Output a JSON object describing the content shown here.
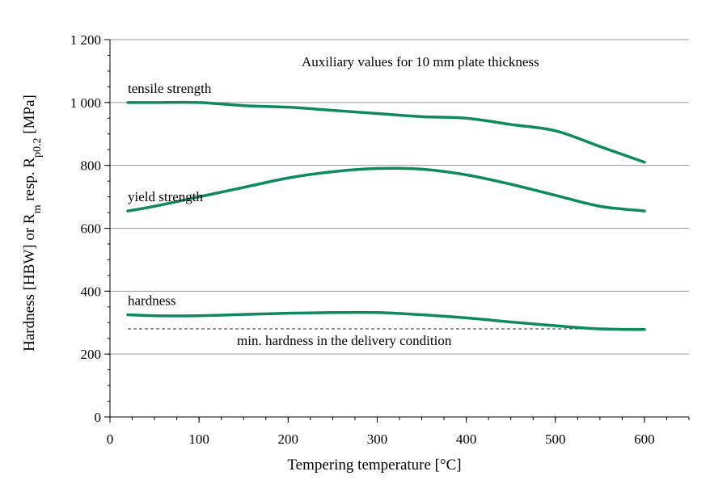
{
  "chart_data": {
    "type": "line",
    "title": "Auxiliary values for 10 mm plate thickness",
    "xlabel": "Tempering temperature [°C]",
    "ylabel_parts": [
      "Hardness [HBW] or R",
      "m",
      " resp. R",
      "p0.2",
      " [MPa]"
    ],
    "xlim": [
      0,
      650
    ],
    "ylim": [
      0,
      1200
    ],
    "x_ticks": [
      "0",
      "100",
      "200",
      "300",
      "400",
      "500",
      "600"
    ],
    "y_ticks": [
      "0",
      "200",
      "400",
      "600",
      "800",
      "1 000",
      "1 200"
    ],
    "grid": "horizontal",
    "line_color": "#0f8a5a",
    "series": [
      {
        "name": "tensile strength",
        "x": [
          20,
          50,
          100,
          150,
          200,
          250,
          300,
          350,
          400,
          450,
          500,
          550,
          600
        ],
        "y": [
          1000,
          1000,
          1000,
          990,
          985,
          975,
          965,
          955,
          950,
          930,
          910,
          860,
          810
        ]
      },
      {
        "name": "yield strength",
        "x": [
          20,
          50,
          100,
          150,
          200,
          250,
          300,
          350,
          400,
          450,
          500,
          550,
          600
        ],
        "y": [
          655,
          670,
          700,
          730,
          760,
          780,
          790,
          788,
          770,
          740,
          705,
          670,
          655
        ]
      },
      {
        "name": "hardness",
        "x": [
          20,
          50,
          100,
          150,
          200,
          250,
          300,
          350,
          400,
          450,
          500,
          550,
          600
        ],
        "y": [
          325,
          322,
          322,
          326,
          330,
          332,
          332,
          325,
          315,
          302,
          290,
          280,
          278
        ]
      }
    ],
    "reference_line": {
      "label": "min. hardness in the delivery condition",
      "x": [
        20,
        600
      ],
      "y": 280,
      "style": "dashed"
    }
  }
}
